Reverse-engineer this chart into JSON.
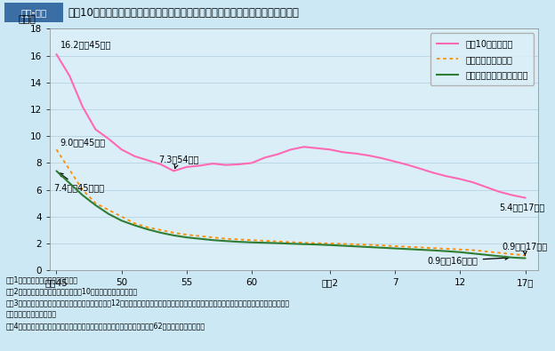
{
  "title_box_text": "第１-４図",
  "title_main": "人口10万人・自動車１万台・自動車１億走行キロ当たりの交通事故死者数の推移",
  "ylabel": "（人）",
  "background_color": "#cce8f4",
  "plot_bg_color": "#daeef7",
  "ylim": [
    0,
    18
  ],
  "yticks": [
    0,
    2,
    4,
    6,
    8,
    10,
    12,
    14,
    16,
    18
  ],
  "xtick_pos": [
    45,
    50,
    55,
    60,
    66,
    71,
    76,
    81
  ],
  "xtick_labels": [
    "昭和45",
    "50",
    "55",
    "60",
    "平成2",
    "7",
    "12",
    "17年"
  ],
  "legend_labels": [
    "人口10万人当たり",
    "自動車１万台当たり",
    "自動車１億走行キロ当たり"
  ],
  "legend_colors": [
    "#ff69b4",
    "#ff6600",
    "#2e7d32"
  ],
  "legend_styles": [
    "solid",
    "dotted",
    "solid"
  ],
  "pop_x": [
    45,
    46,
    47,
    48,
    49,
    50,
    51,
    52,
    53,
    54,
    55,
    56,
    57,
    58,
    59,
    60,
    61,
    62,
    63,
    64,
    65,
    66,
    67,
    68,
    69,
    70,
    71,
    72,
    73,
    74,
    75,
    76,
    77,
    78,
    79,
    80,
    81
  ],
  "pop_y": [
    16.1,
    14.5,
    12.2,
    10.5,
    9.8,
    9.0,
    8.5,
    8.2,
    7.9,
    7.4,
    7.7,
    7.8,
    7.95,
    7.85,
    7.9,
    8.0,
    8.4,
    8.65,
    9.0,
    9.2,
    9.1,
    9.0,
    8.8,
    8.7,
    8.55,
    8.35,
    8.1,
    7.85,
    7.55,
    7.25,
    7.0,
    6.8,
    6.55,
    6.2,
    5.85,
    5.6,
    5.4
  ],
  "car_x": [
    45,
    46,
    47,
    48,
    49,
    50,
    51,
    52,
    53,
    54,
    55,
    56,
    57,
    58,
    59,
    60,
    61,
    62,
    63,
    64,
    65,
    66,
    67,
    68,
    69,
    70,
    71,
    72,
    73,
    74,
    75,
    76,
    77,
    78,
    79,
    80,
    81
  ],
  "car_y": [
    9.0,
    7.5,
    6.0,
    5.0,
    4.5,
    4.0,
    3.5,
    3.2,
    3.0,
    2.8,
    2.65,
    2.55,
    2.45,
    2.35,
    2.3,
    2.25,
    2.2,
    2.15,
    2.1,
    2.05,
    2.02,
    2.0,
    1.97,
    1.93,
    1.9,
    1.85,
    1.8,
    1.75,
    1.7,
    1.65,
    1.6,
    1.55,
    1.5,
    1.4,
    1.3,
    1.2,
    1.1
  ],
  "km_x": [
    45,
    46,
    47,
    48,
    49,
    50,
    51,
    52,
    53,
    54,
    55,
    56,
    57,
    58,
    59,
    60,
    61,
    62,
    63,
    64,
    65,
    66,
    67,
    68,
    69,
    70,
    71,
    72,
    73,
    74,
    75,
    76,
    77,
    78,
    79,
    80,
    81
  ],
  "km_y": [
    7.4,
    6.5,
    5.6,
    4.85,
    4.2,
    3.7,
    3.35,
    3.05,
    2.8,
    2.6,
    2.45,
    2.35,
    2.25,
    2.18,
    2.12,
    2.08,
    2.05,
    2.02,
    1.98,
    1.95,
    1.92,
    1.88,
    1.83,
    1.78,
    1.73,
    1.68,
    1.63,
    1.58,
    1.53,
    1.48,
    1.42,
    1.35,
    1.25,
    1.15,
    1.05,
    0.95,
    0.9
  ],
  "note_lines": [
    "注　1　死者数は警察庁資料による。",
    "　　2　人口は総務省資料により，各年10月１日現在の値である。",
    "　　3　自動車保有台数は国土交通省資料により，各年12月末現在の値である。保有台数には，第１種及び第２種原動機付自転車並びに小型特殊自",
    "　　　　動車を含まない。",
    "　　4　自動車走行キロは国土交通省資料により，軽自動車によるものは昭和62年度から計上された。"
  ]
}
